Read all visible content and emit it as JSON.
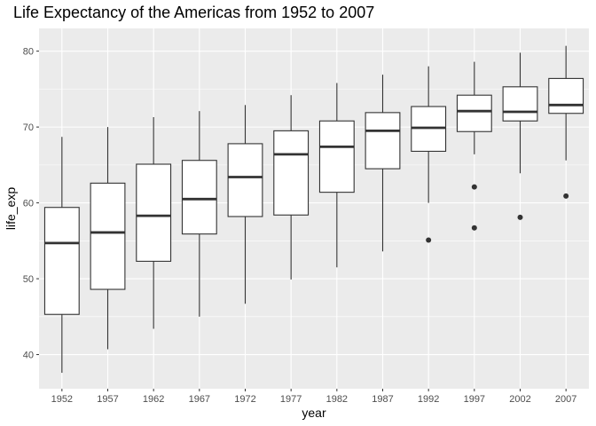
{
  "chart_data": {
    "type": "boxplot",
    "title": "Life Expectancy of the Americas from 1952 to 2007",
    "xlabel": "year",
    "ylabel": "life_exp",
    "ylim": [
      35.5,
      83
    ],
    "yticks": [
      40,
      50,
      60,
      70,
      80
    ],
    "grid": true,
    "legend": "none",
    "colors": {
      "panel": "#ebebeb",
      "grid": "#ffffff",
      "box_fill": "#ffffff",
      "box_line": "#333333"
    },
    "categories": [
      "1952",
      "1957",
      "1962",
      "1967",
      "1972",
      "1977",
      "1982",
      "1987",
      "1992",
      "1997",
      "2002",
      "2007"
    ],
    "boxes": [
      {
        "x": "1952",
        "whisker_low": 37.6,
        "q1": 45.3,
        "median": 54.7,
        "q3": 59.4,
        "whisker_high": 68.7,
        "outliers": []
      },
      {
        "x": "1957",
        "whisker_low": 40.7,
        "q1": 48.6,
        "median": 56.1,
        "q3": 62.6,
        "whisker_high": 70.0,
        "outliers": []
      },
      {
        "x": "1962",
        "whisker_low": 43.4,
        "q1": 52.3,
        "median": 58.3,
        "q3": 65.1,
        "whisker_high": 71.3,
        "outliers": []
      },
      {
        "x": "1967",
        "whisker_low": 45.0,
        "q1": 55.9,
        "median": 60.5,
        "q3": 65.6,
        "whisker_high": 72.1,
        "outliers": []
      },
      {
        "x": "1972",
        "whisker_low": 46.7,
        "q1": 58.2,
        "median": 63.4,
        "q3": 67.8,
        "whisker_high": 72.9,
        "outliers": []
      },
      {
        "x": "1977",
        "whisker_low": 49.9,
        "q1": 58.4,
        "median": 66.4,
        "q3": 69.5,
        "whisker_high": 74.2,
        "outliers": []
      },
      {
        "x": "1982",
        "whisker_low": 51.5,
        "q1": 61.4,
        "median": 67.4,
        "q3": 70.8,
        "whisker_high": 75.8,
        "outliers": []
      },
      {
        "x": "1987",
        "whisker_low": 53.6,
        "q1": 64.5,
        "median": 69.5,
        "q3": 71.9,
        "whisker_high": 76.9,
        "outliers": []
      },
      {
        "x": "1992",
        "whisker_low": 60.0,
        "q1": 66.8,
        "median": 69.9,
        "q3": 72.7,
        "whisker_high": 78.0,
        "outliers": [
          55.1
        ]
      },
      {
        "x": "1997",
        "whisker_low": 66.4,
        "q1": 69.4,
        "median": 72.1,
        "q3": 74.2,
        "whisker_high": 78.6,
        "outliers": [
          62.1,
          56.7
        ]
      },
      {
        "x": "2002",
        "whisker_low": 63.9,
        "q1": 70.8,
        "median": 72.0,
        "q3": 75.3,
        "whisker_high": 79.8,
        "outliers": [
          58.1
        ]
      },
      {
        "x": "2007",
        "whisker_low": 65.6,
        "q1": 71.8,
        "median": 72.9,
        "q3": 76.4,
        "whisker_high": 80.7,
        "outliers": [
          60.9
        ]
      }
    ]
  }
}
